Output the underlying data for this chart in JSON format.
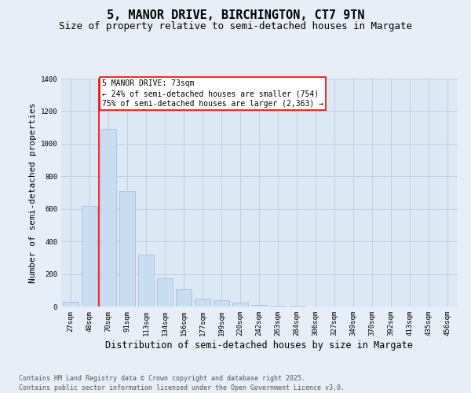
{
  "title1": "5, MANOR DRIVE, BIRCHINGTON, CT7 9TN",
  "title2": "Size of property relative to semi-detached houses in Margate",
  "xlabel": "Distribution of semi-detached houses by size in Margate",
  "ylabel": "Number of semi-detached properties",
  "categories": [
    "27sqm",
    "48sqm",
    "70sqm",
    "91sqm",
    "113sqm",
    "134sqm",
    "156sqm",
    "177sqm",
    "199sqm",
    "220sqm",
    "242sqm",
    "263sqm",
    "284sqm",
    "306sqm",
    "327sqm",
    "349sqm",
    "370sqm",
    "392sqm",
    "413sqm",
    "435sqm",
    "456sqm"
  ],
  "values": [
    28,
    620,
    1090,
    710,
    320,
    175,
    105,
    50,
    40,
    22,
    12,
    7,
    5,
    1,
    0,
    0,
    0,
    0,
    0,
    0,
    0
  ],
  "bar_color": "#c9ddf0",
  "bar_edge_color": "#a0b8d8",
  "ylim_max": 1400,
  "yticks": [
    0,
    200,
    400,
    600,
    800,
    1000,
    1200,
    1400
  ],
  "property_bin_index": 2,
  "annotation_line1": "5 MANOR DRIVE: 73sqm",
  "annotation_line2": "← 24% of semi-detached houses are smaller (754)",
  "annotation_line3": "75% of semi-detached houses are larger (2,363) →",
  "footnote1": "Contains HM Land Registry data © Crown copyright and database right 2025.",
  "footnote2": "Contains public sector information licensed under the Open Government Licence v3.0.",
  "fig_bg_color": "#e8eef8",
  "plot_bg_color": "#dde8f5",
  "grid_color": "#b8cce0",
  "title_fontsize": 11,
  "subtitle_fontsize": 9,
  "axis_label_fontsize": 8,
  "tick_fontsize": 6.5,
  "annotation_fontsize": 7,
  "footnote_fontsize": 6
}
